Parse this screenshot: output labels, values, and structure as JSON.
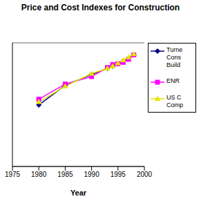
{
  "chart_data": {
    "type": "line",
    "title": "Price and Cost Indexes for Construction",
    "x_label": "Year",
    "x": [
      1980,
      1985,
      1990,
      1993,
      1994,
      1995,
      1996,
      1997,
      1998
    ],
    "series": [
      {
        "name": "Turne Cons Build",
        "color": "#000080",
        "marker": "diamond",
        "values": [
          224,
          295,
          335,
          357,
          365,
          374,
          382,
          393,
          406
        ]
      },
      {
        "name": "ENR",
        "color": "#ff00ff",
        "marker": "square",
        "values": [
          245,
          300,
          327,
          360,
          371,
          374,
          379,
          390,
          406
        ]
      },
      {
        "name": "US C Comp",
        "color": "#e6e600",
        "marker": "triangle",
        "values": [
          235,
          292,
          338,
          357,
          365,
          376,
          387,
          398,
          409
        ]
      }
    ],
    "xlim": [
      1975,
      2000
    ],
    "xticks": [
      1975,
      1980,
      1985,
      1990,
      1995,
      2000
    ],
    "ylim": [
      0,
      450
    ],
    "yticks": [
      0,
      50,
      100,
      150,
      200,
      250,
      300,
      350,
      400,
      450
    ],
    "grid": true,
    "tick_labels": "x",
    "legend": "right"
  }
}
